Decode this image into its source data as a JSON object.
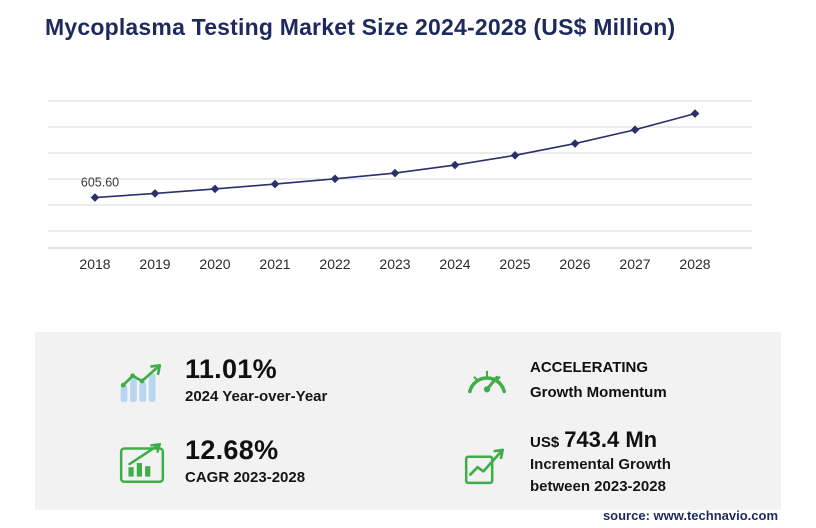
{
  "title": "Mycoplasma Testing Market Size 2024-2028 (US$ Million)",
  "source": "source: www.technavio.com",
  "chart_data": {
    "type": "line",
    "title": "Mycoplasma Testing Market Size 2024-2028 (US$ Million)",
    "x": [
      "2018",
      "2019",
      "2020",
      "2021",
      "2022",
      "2023",
      "2024",
      "2025",
      "2026",
      "2027",
      "2028"
    ],
    "values": [
      605.6,
      657.2,
      713.3,
      774.1,
      840.2,
      911.5,
      1011.9,
      1133.3,
      1280.6,
      1453.5,
      1654.9
    ],
    "first_point_label": "605.60",
    "xlabel": "",
    "ylabel": "",
    "ylim": [
      0,
      1800
    ],
    "grid": "horizontal",
    "legend": "none",
    "line_color": "#2b2f6c",
    "marker": "diamond"
  },
  "stats": {
    "yoy": {
      "value": "11.01%",
      "label": "2024 Year-over-Year",
      "icon": "bar-chart-growth-icon"
    },
    "momentum": {
      "line1": "ACCELERATING",
      "line2": "Growth Momentum",
      "icon": "speedometer-icon"
    },
    "cagr": {
      "value": "12.68%",
      "label": "CAGR 2023-2028",
      "icon": "cagr-chart-icon"
    },
    "incremental": {
      "currency": "US$",
      "value": "743.4 Mn",
      "label_line1": "Incremental Growth",
      "label_line2": "between 2023-2028",
      "icon": "incremental-growth-icon"
    }
  },
  "colors": {
    "accent_green": "#3fae49",
    "light_blue": "#b9d6f0",
    "navy": "#1f2a5c",
    "line_navy": "#2b2f6c",
    "panel_bg": "#f2f2f3",
    "gridline": "#d9d9d9"
  }
}
